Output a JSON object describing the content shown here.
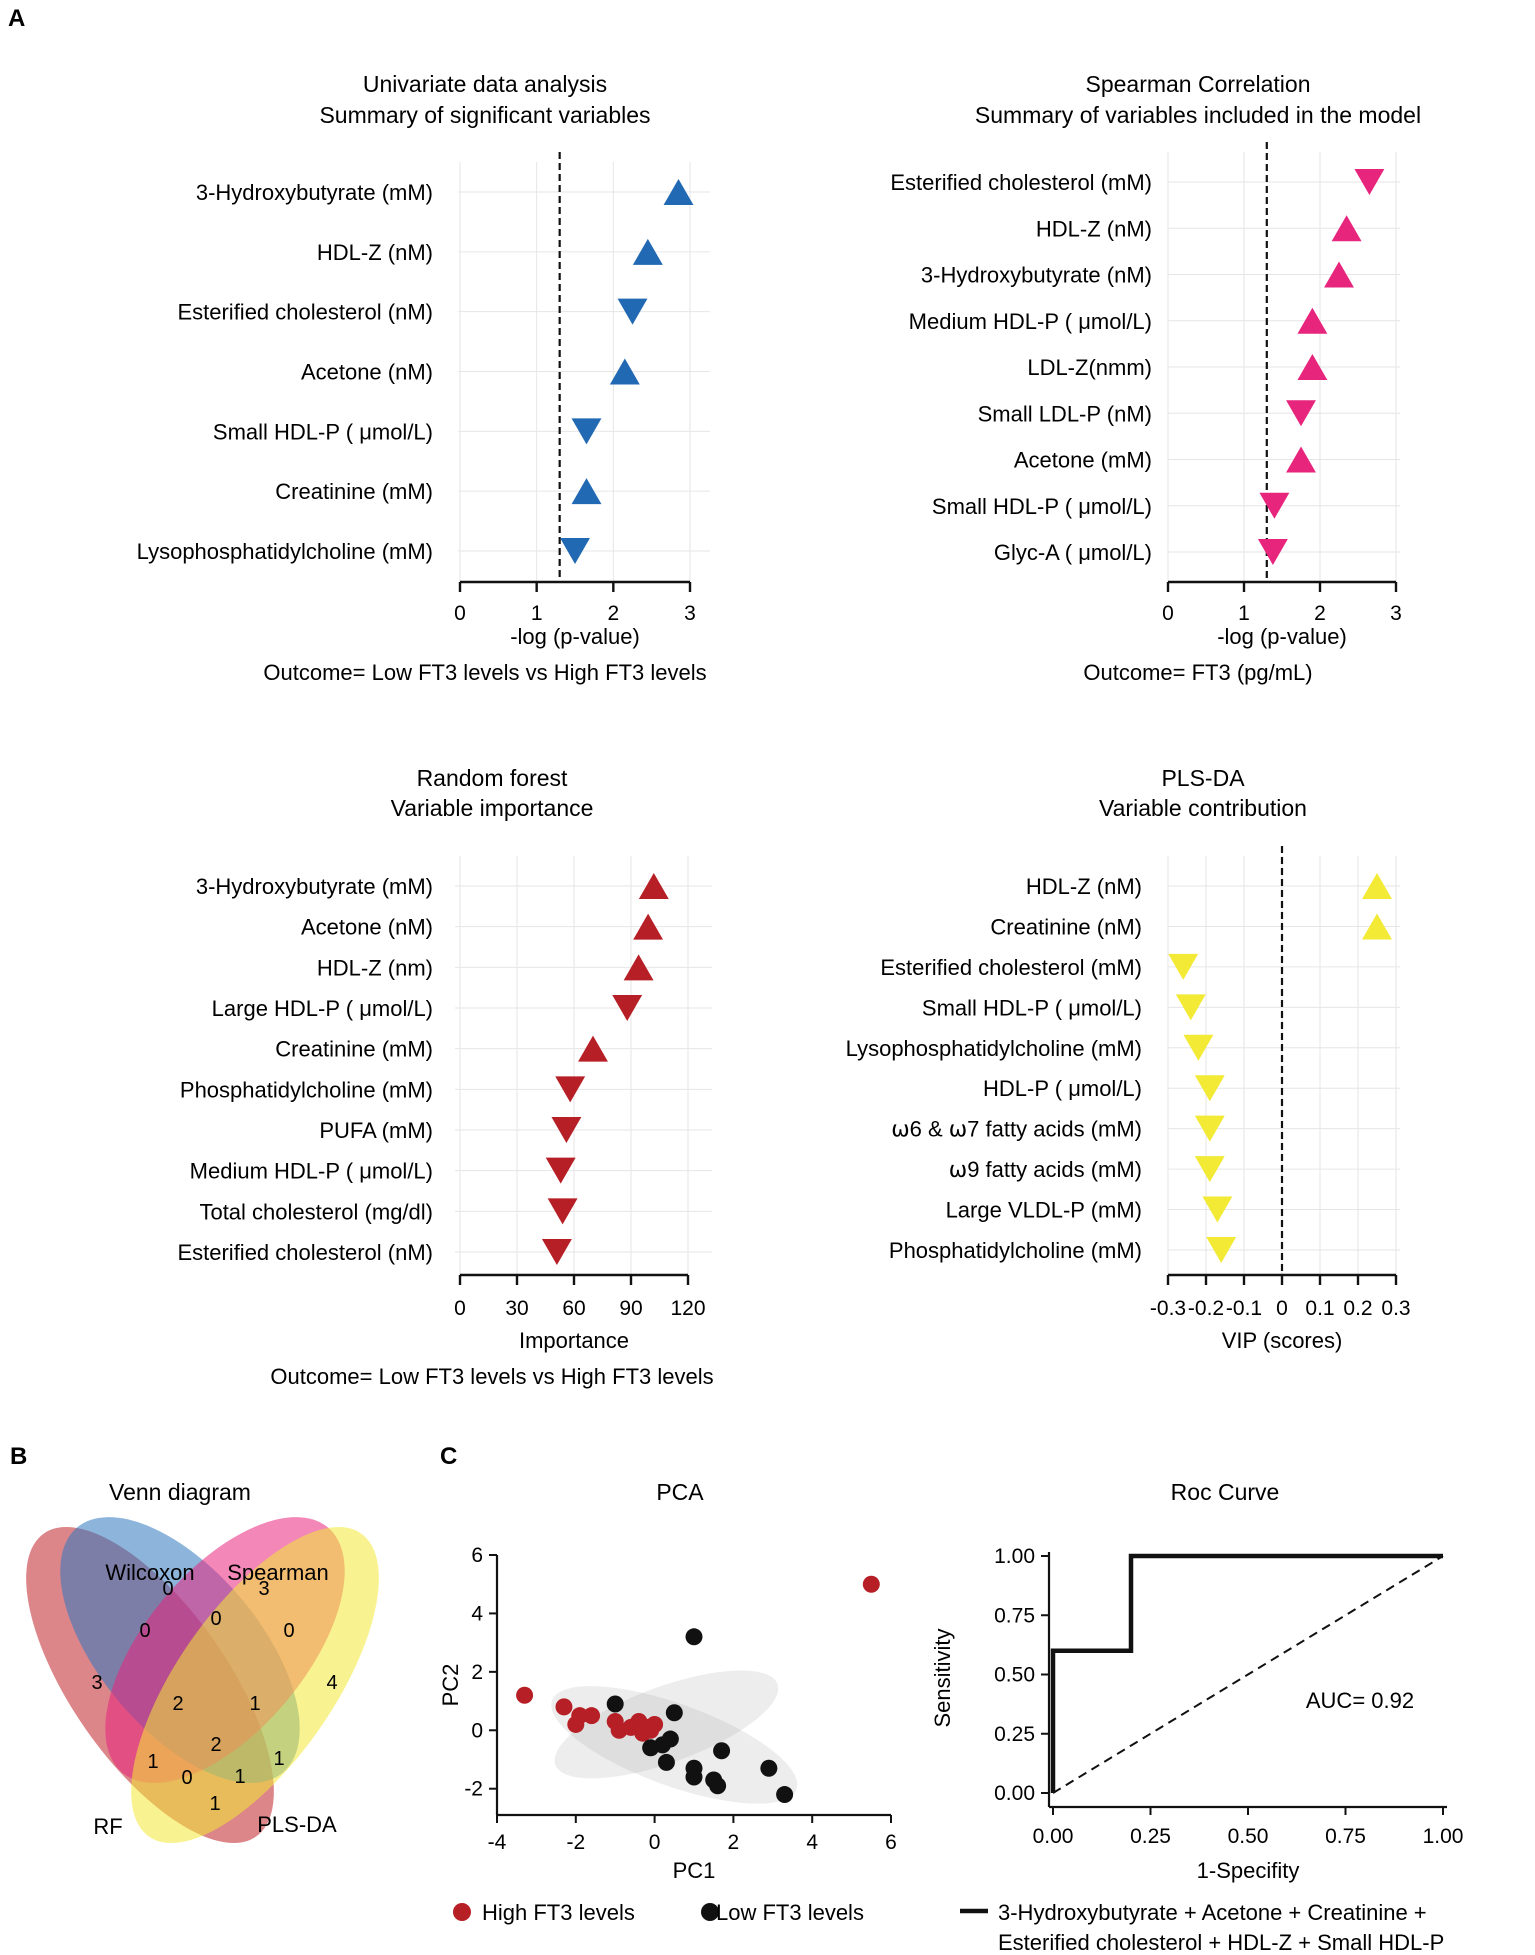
{
  "panel_labels": {
    "a": "A",
    "b": "B",
    "c": "C"
  },
  "colors": {
    "blue": "#2169b3",
    "pink": "#e7257d",
    "red": "#b71f26",
    "yellow": "#f2ea35",
    "black": "#111111",
    "grid": "#e6e6e6"
  },
  "chart_data": [
    {
      "id": "univariate",
      "type": "scatter",
      "marker": "triangle",
      "title": [
        "Univariate data analysis",
        "Summary of significant variables"
      ],
      "xlabel": "-log (p-value)",
      "caption": "Outcome= Low FT3 levels vs High FT3 levels",
      "xlim": [
        0,
        3
      ],
      "xticks": [
        "0",
        "1",
        "2",
        "3"
      ],
      "threshold": 1.3,
      "color": "blue",
      "items": [
        {
          "label": "3-Hydroxybutyrate (mM)",
          "value": 2.85,
          "dir": "up"
        },
        {
          "label": "HDL-Z (nM)",
          "value": 2.45,
          "dir": "up"
        },
        {
          "label": "Esterified cholesterol (nM)",
          "value": 2.25,
          "dir": "down"
        },
        {
          "label": "Acetone (nM)",
          "value": 2.15,
          "dir": "up"
        },
        {
          "label": "Small HDL-P (   μmol/L)",
          "value": 1.65,
          "dir": "down"
        },
        {
          "label": "Creatinine (mM)",
          "value": 1.65,
          "dir": "up"
        },
        {
          "label": "Lysophosphatidylcholine (mM)",
          "value": 1.5,
          "dir": "down"
        }
      ]
    },
    {
      "id": "spearman",
      "type": "scatter",
      "marker": "triangle",
      "title": [
        "Spearman Correlation",
        "Summary of variables included in the model"
      ],
      "xlabel": "-log (p-value)",
      "caption": "Outcome= FT3 (pg/mL)",
      "xlim": [
        0,
        3
      ],
      "xticks": [
        "0",
        "1",
        "2",
        "3"
      ],
      "threshold": 1.3,
      "color": "pink",
      "items": [
        {
          "label": "Esterified cholesterol (mM)",
          "value": 2.65,
          "dir": "down"
        },
        {
          "label": "HDL-Z (nM)",
          "value": 2.35,
          "dir": "up"
        },
        {
          "label": "3-Hydroxybutyrate (nM)",
          "value": 2.25,
          "dir": "up"
        },
        {
          "label": "Medium HDL-P (   μmol/L)",
          "value": 1.9,
          "dir": "up"
        },
        {
          "label": "LDL-Z(nmm)",
          "value": 1.9,
          "dir": "up"
        },
        {
          "label": "Small LDL-P (nM)",
          "value": 1.75,
          "dir": "down"
        },
        {
          "label": "Acetone (mM)",
          "value": 1.75,
          "dir": "up"
        },
        {
          "label": "Small HDL-P (   μmol/L)",
          "value": 1.4,
          "dir": "down"
        },
        {
          "label": "Glyc-A (  μmol/L)",
          "value": 1.38,
          "dir": "down"
        }
      ]
    },
    {
      "id": "random_forest",
      "type": "scatter",
      "marker": "triangle",
      "title": [
        "Random forest",
        "Variable importance"
      ],
      "xlabel": "Importance",
      "caption": "Outcome= Low FT3 levels vs High FT3 levels",
      "xlim": [
        0,
        120
      ],
      "xticks": [
        "0",
        "30",
        "60",
        "90",
        "120"
      ],
      "color": "red",
      "items": [
        {
          "label": "3-Hydroxybutyrate (mM)",
          "value": 102,
          "dir": "up"
        },
        {
          "label": "Acetone (nM)",
          "value": 99,
          "dir": "up"
        },
        {
          "label": "HDL-Z (nm)",
          "value": 94,
          "dir": "up"
        },
        {
          "label": "Large HDL-P (   μmol/L)",
          "value": 88,
          "dir": "down"
        },
        {
          "label": "Creatinine (mM)",
          "value": 70,
          "dir": "up"
        },
        {
          "label": "Phosphatidylcholine (mM)",
          "value": 58,
          "dir": "down"
        },
        {
          "label": "PUFA (mM)",
          "value": 56,
          "dir": "down"
        },
        {
          "label": "Medium HDL-P (   μmol/L)",
          "value": 53,
          "dir": "down"
        },
        {
          "label": "Total cholesterol (mg/dl)",
          "value": 54,
          "dir": "down"
        },
        {
          "label": "Esterified cholesterol (nM)",
          "value": 51,
          "dir": "down"
        }
      ]
    },
    {
      "id": "plsda",
      "type": "scatter",
      "marker": "triangle",
      "title": [
        "PLS-DA",
        "Variable contribution"
      ],
      "xlabel": "VIP (scores)",
      "xlim": [
        -0.3,
        0.3
      ],
      "xticks": [
        "-0.3",
        "-0.2",
        "-0.1",
        "0",
        "0.1",
        "0.2",
        "0.3"
      ],
      "threshold": 0,
      "color": "yellow",
      "items": [
        {
          "label": "HDL-Z (nM)",
          "value": 0.25,
          "dir": "up"
        },
        {
          "label": "Creatinine (nM)",
          "value": 0.25,
          "dir": "up"
        },
        {
          "label": "Esterified cholesterol (mM)",
          "value": -0.26,
          "dir": "down"
        },
        {
          "label": "Small HDL-P (   μmol/L)",
          "value": -0.24,
          "dir": "down"
        },
        {
          "label": "Lysophosphatidylcholine (mM)",
          "value": -0.22,
          "dir": "down"
        },
        {
          "label": "HDL-P (   μmol/L)",
          "value": -0.19,
          "dir": "down"
        },
        {
          "label": "⍵6 & ⍵7 fatty acids (mM)",
          "value": -0.19,
          "dir": "down"
        },
        {
          "label": "⍵9 fatty acids (mM)",
          "value": -0.19,
          "dir": "down"
        },
        {
          "label": "Large VLDL-P (mM)",
          "value": -0.17,
          "dir": "down"
        },
        {
          "label": "Phosphatidylcholine (mM)",
          "value": -0.16,
          "dir": "down"
        }
      ]
    },
    {
      "id": "venn",
      "type": "venn",
      "title": "Venn diagram",
      "sets": [
        "Wilcoxon",
        "Spearman",
        "RF",
        "PLS-DA"
      ],
      "regions": {
        "RF_only": "3",
        "Wilcoxon_only": "0",
        "Spearman_only": "3",
        "PLSDA_only": "4",
        "RF_Wilcoxon": "0",
        "Wilcoxon_Spearman": "0",
        "Spearman_PLSDA": "0",
        "RF_Wilcoxon_Spearman": "2",
        "Wilcoxon_Spearman_PLSDA": "1",
        "all_four": "2",
        "RF_Spearman": "1",
        "Wilcoxon_PLSDA": "1",
        "RF_Spearman_PLSDA": "0",
        "RF_Wilcoxon_PLSDA": "1",
        "RF_PLSDA": "1"
      }
    },
    {
      "id": "pca",
      "type": "scatter",
      "title": "PCA",
      "xlabel": "PC1",
      "ylabel": "PC2",
      "xlim": [
        -4,
        6
      ],
      "ylim": [
        -2.9,
        6
      ],
      "xticks": [
        "-4",
        "-2",
        "0",
        "2",
        "4",
        "6"
      ],
      "yticks": [
        "-2",
        "0",
        "2",
        "4",
        "6"
      ],
      "series": [
        {
          "name": "High FT3 levels",
          "color": "red",
          "points": [
            [
              -3.3,
              1.2
            ],
            [
              -2.3,
              0.8
            ],
            [
              -1.6,
              0.5
            ],
            [
              -1.9,
              0.5
            ],
            [
              -2.0,
              0.2
            ],
            [
              -1.0,
              0.3
            ],
            [
              -0.9,
              0.0
            ],
            [
              -0.6,
              0.1
            ],
            [
              -0.4,
              0.3
            ],
            [
              -0.2,
              0.1
            ],
            [
              -0.1,
              0.0
            ],
            [
              0.0,
              0.2
            ],
            [
              -0.3,
              -0.1
            ],
            [
              5.5,
              5.0
            ]
          ]
        },
        {
          "name": "Low FT3 levels",
          "color": "black",
          "points": [
            [
              -1.0,
              0.9
            ],
            [
              1.0,
              3.2
            ],
            [
              0.5,
              0.6
            ],
            [
              -0.1,
              -0.6
            ],
            [
              0.2,
              -0.5
            ],
            [
              0.3,
              -1.1
            ],
            [
              1.0,
              -1.3
            ],
            [
              1.0,
              -1.6
            ],
            [
              1.5,
              -1.7
            ],
            [
              1.6,
              -1.9
            ],
            [
              1.7,
              -0.7
            ],
            [
              2.9,
              -1.3
            ],
            [
              3.3,
              -2.2
            ],
            [
              0.4,
              -0.3
            ]
          ]
        }
      ],
      "ellipses": [
        {
          "cx": 0.3,
          "cy": 0.2,
          "rx": 3.0,
          "ry": 1.3,
          "angle_deg": 20
        },
        {
          "cx": 0.5,
          "cy": -0.5,
          "rx": 3.3,
          "ry": 1.4,
          "angle_deg": -20
        }
      ]
    },
    {
      "id": "roc",
      "type": "line",
      "title": "Roc Curve",
      "xlabel": "1-Specifity",
      "ylabel": "Sensitivity",
      "xlim": [
        0,
        1
      ],
      "ylim": [
        0,
        1
      ],
      "xticks": [
        "0.00",
        "0.25",
        "0.50",
        "0.75",
        "1.00"
      ],
      "yticks": [
        "0.00",
        "0.25",
        "0.50",
        "0.75",
        "1.00"
      ],
      "curve": [
        [
          0,
          0
        ],
        [
          0,
          0.6
        ],
        [
          0.2,
          0.6
        ],
        [
          0.2,
          1.0
        ],
        [
          1.0,
          1.0
        ]
      ],
      "annotation": "AUC= 0.92",
      "legend": [
        "3-Hydroxybutyrate + Acetone + Creatinine +",
        "Esterified cholesterol + HDL-Z + Small HDL-P"
      ]
    }
  ]
}
